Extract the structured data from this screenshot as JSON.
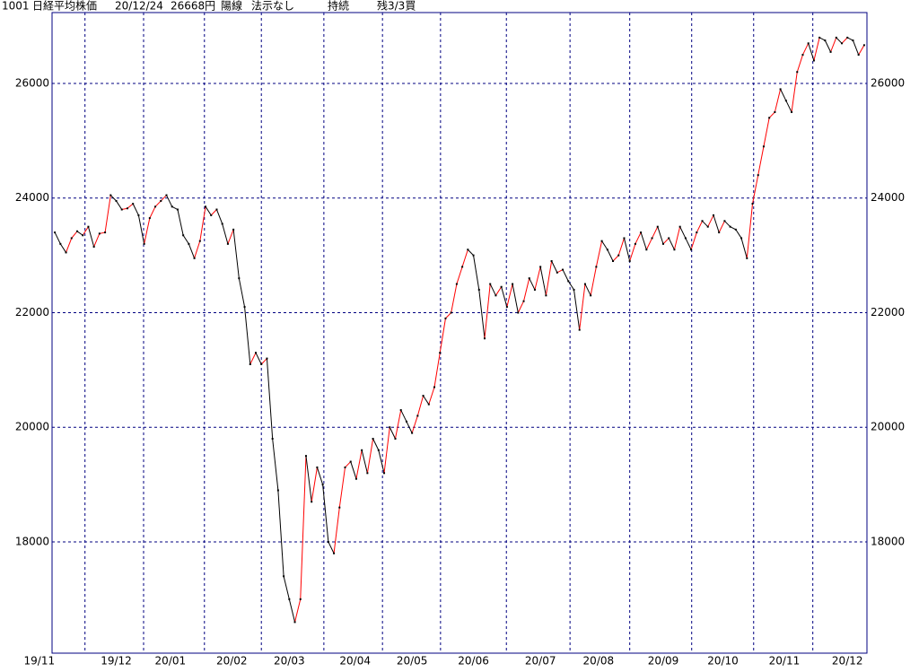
{
  "chart_data": {
    "type": "line",
    "header": [
      "1001",
      "日経平均株価",
      "20/12/24",
      "26668円",
      "陽線",
      "法示なし",
      "持続",
      "残3/3買"
    ],
    "values": [
      23400,
      23200,
      23050,
      23300,
      23420,
      23350,
      23500,
      23150,
      23380,
      23400,
      24050,
      23950,
      23800,
      23820,
      23900,
      23700,
      23200,
      23650,
      23850,
      23950,
      24050,
      23850,
      23800,
      23350,
      23200,
      22950,
      23250,
      23850,
      23700,
      23800,
      23550,
      23200,
      23450,
      22600,
      22100,
      21100,
      21300,
      21100,
      21200,
      19800,
      18900,
      17400,
      17000,
      16600,
      17000,
      19500,
      18700,
      19300,
      19000,
      18000,
      17800,
      18600,
      19300,
      19400,
      19100,
      19600,
      19200,
      19800,
      19600,
      19200,
      20000,
      19800,
      20300,
      20100,
      19900,
      20200,
      20550,
      20400,
      20700,
      21300,
      21900,
      22000,
      22500,
      22800,
      23100,
      23000,
      22400,
      21550,
      22500,
      22300,
      22450,
      22100,
      22500,
      22000,
      22200,
      22600,
      22400,
      22800,
      22300,
      22900,
      22700,
      22750,
      22550,
      22400,
      21700,
      22500,
      22300,
      22800,
      23250,
      23100,
      22900,
      23000,
      23300,
      22900,
      23200,
      23400,
      23100,
      23300,
      23500,
      23200,
      23300,
      23100,
      23500,
      23300,
      23100,
      23400,
      23600,
      23500,
      23700,
      23400,
      23600,
      23500,
      23450,
      23300,
      22950,
      23900,
      24400,
      24900,
      25400,
      25500,
      25900,
      25700,
      25500,
      26200,
      26500,
      26700,
      26400,
      26800,
      26750,
      26550,
      26800,
      26700,
      26800,
      26750,
      26500,
      26668
    ],
    "up_color": "#ff0000",
    "down_color": "#000000",
    "point_color": "#000000",
    "xlim": [
      -0.5,
      145.5
    ],
    "xticks": [
      {
        "value": 0,
        "label": "19/11"
      },
      {
        "value": 11,
        "label": "19/12"
      },
      {
        "value": 20.7,
        "label": "20/01"
      },
      {
        "value": 31.7,
        "label": "20/02"
      },
      {
        "value": 42,
        "label": "20/03"
      },
      {
        "value": 53.8,
        "label": "20/04"
      },
      {
        "value": 64,
        "label": "20/05"
      },
      {
        "value": 75,
        "label": "20/06"
      },
      {
        "value": 87,
        "label": "20/07"
      },
      {
        "value": 97.4,
        "label": "20/08"
      },
      {
        "value": 109,
        "label": "20/09"
      },
      {
        "value": 119.7,
        "label": "20/10"
      },
      {
        "value": 130.7,
        "label": "20/11"
      },
      {
        "value": 142,
        "label": "20/12"
      }
    ],
    "xgrid": [
      5.4,
      15.9,
      26.8,
      37,
      48.2,
      58.7,
      69.1,
      80.9,
      92.3,
      103,
      114.1,
      125.2,
      135.8
    ],
    "ylim": [
      16058,
      27237
    ],
    "yticks": [
      18000,
      20000,
      22000,
      24000,
      26000
    ],
    "grid": true
  }
}
